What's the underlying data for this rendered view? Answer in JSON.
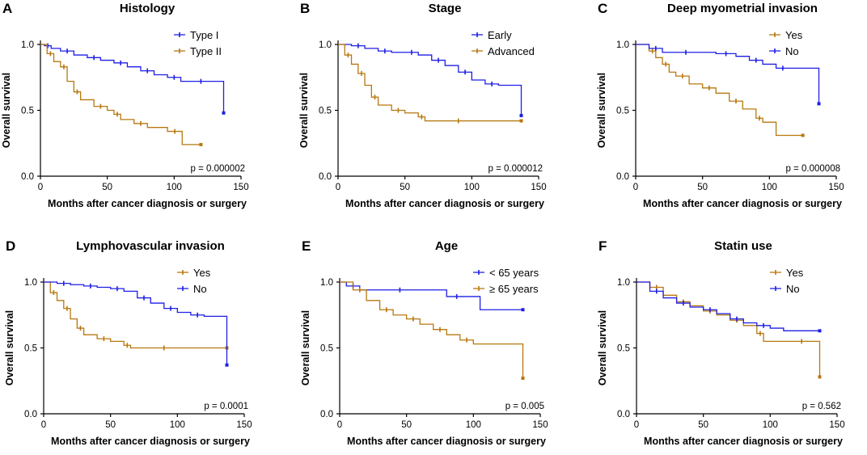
{
  "colors": {
    "blue": "#1f1fe6",
    "brown": "#b7780f",
    "axis": "#000000"
  },
  "chart_data": [
    {
      "type": "line",
      "letter": "A",
      "title": "Histology",
      "xlabel": "Months after cancer diagnosis or surgery",
      "ylabel": "Overall survival",
      "xlim": [
        0,
        150
      ],
      "ylim": [
        0,
        1
      ],
      "xticks": [
        "0",
        "50",
        "100",
        "150"
      ],
      "yticks": [
        "0.0",
        "0.5",
        "1.0"
      ],
      "p_value": "p = 0.000002",
      "legend_position": "top-right",
      "series": [
        {
          "name": "Type I",
          "color": "blue",
          "x": [
            0,
            3,
            8,
            15,
            25,
            35,
            45,
            55,
            65,
            75,
            85,
            95,
            105,
            115,
            125,
            137,
            137
          ],
          "y": [
            1.0,
            0.99,
            0.97,
            0.95,
            0.92,
            0.9,
            0.88,
            0.86,
            0.83,
            0.8,
            0.77,
            0.75,
            0.72,
            0.72,
            0.72,
            0.72,
            0.48
          ]
        },
        {
          "name": "Type II",
          "color": "brown",
          "x": [
            0,
            5,
            10,
            15,
            20,
            25,
            30,
            40,
            50,
            55,
            60,
            70,
            80,
            95,
            106,
            120
          ],
          "y": [
            1.0,
            0.93,
            0.87,
            0.83,
            0.72,
            0.64,
            0.58,
            0.53,
            0.5,
            0.47,
            0.43,
            0.4,
            0.37,
            0.34,
            0.24,
            0.24
          ]
        }
      ]
    },
    {
      "type": "line",
      "letter": "B",
      "title": "Stage",
      "xlabel": "Months after cancer diagnosis or surgery",
      "ylabel": "Overall survival",
      "xlim": [
        0,
        150
      ],
      "ylim": [
        0,
        1
      ],
      "xticks": [
        "0",
        "50",
        "100",
        "150"
      ],
      "yticks": [
        "0.0",
        "0.5",
        "1.0"
      ],
      "p_value": "p = 0.000012",
      "legend_position": "top-right",
      "series": [
        {
          "name": "Early",
          "color": "blue",
          "x": [
            0,
            10,
            20,
            30,
            40,
            50,
            60,
            70,
            80,
            90,
            100,
            110,
            120,
            137,
            137
          ],
          "y": [
            1.0,
            0.99,
            0.97,
            0.95,
            0.94,
            0.94,
            0.92,
            0.88,
            0.84,
            0.79,
            0.73,
            0.7,
            0.69,
            0.69,
            0.46
          ]
        },
        {
          "name": "Advanced",
          "color": "brown",
          "x": [
            0,
            5,
            10,
            15,
            20,
            25,
            30,
            40,
            50,
            60,
            65,
            80,
            100,
            137
          ],
          "y": [
            1.0,
            0.92,
            0.85,
            0.78,
            0.69,
            0.6,
            0.54,
            0.5,
            0.48,
            0.45,
            0.42,
            0.42,
            0.42,
            0.42
          ]
        }
      ]
    },
    {
      "type": "line",
      "letter": "C",
      "title": "Deep myometrial invasion",
      "xlabel": "Months after cancer diagnosis or surgery",
      "ylabel": "Overall survival",
      "xlim": [
        0,
        150
      ],
      "ylim": [
        0,
        1
      ],
      "xticks": [
        "0",
        "50",
        "100",
        "150"
      ],
      "yticks": [
        "0.0",
        "0.5",
        "1.0"
      ],
      "p_value": "p = 0.000008",
      "legend_position": "top-right",
      "series": [
        {
          "name": "Yes",
          "color": "brown",
          "x": [
            0,
            10,
            15,
            20,
            25,
            30,
            40,
            50,
            60,
            70,
            80,
            90,
            95,
            105,
            125
          ],
          "y": [
            1.0,
            0.95,
            0.9,
            0.85,
            0.79,
            0.76,
            0.7,
            0.67,
            0.63,
            0.57,
            0.51,
            0.44,
            0.41,
            0.31,
            0.31
          ]
        },
        {
          "name": "No",
          "color": "blue",
          "x": [
            0,
            10,
            20,
            30,
            45,
            60,
            75,
            85,
            95,
            105,
            115,
            137,
            137
          ],
          "y": [
            1.0,
            0.97,
            0.94,
            0.94,
            0.94,
            0.93,
            0.91,
            0.88,
            0.85,
            0.82,
            0.82,
            0.82,
            0.55
          ]
        }
      ]
    },
    {
      "type": "line",
      "letter": "D",
      "title": "Lymphovascular invasion",
      "xlabel": "Months after cancer diagnosis or surgery",
      "ylabel": "Overall survival",
      "xlim": [
        0,
        150
      ],
      "ylim": [
        0,
        1
      ],
      "xticks": [
        "0",
        "50",
        "100",
        "150"
      ],
      "yticks": [
        "0.0",
        "0.5",
        "1.0"
      ],
      "p_value": "p = 0.0001",
      "legend_position": "top-right",
      "series": [
        {
          "name": "Yes",
          "color": "brown",
          "x": [
            0,
            5,
            10,
            15,
            20,
            25,
            30,
            40,
            50,
            60,
            65,
            80,
            100,
            137
          ],
          "y": [
            1.0,
            0.92,
            0.86,
            0.8,
            0.72,
            0.65,
            0.6,
            0.57,
            0.55,
            0.52,
            0.5,
            0.5,
            0.5,
            0.5
          ]
        },
        {
          "name": "No",
          "color": "blue",
          "x": [
            0,
            10,
            20,
            30,
            40,
            50,
            60,
            70,
            80,
            90,
            100,
            110,
            120,
            137,
            137
          ],
          "y": [
            1.0,
            0.99,
            0.98,
            0.97,
            0.96,
            0.95,
            0.93,
            0.88,
            0.84,
            0.8,
            0.77,
            0.75,
            0.74,
            0.74,
            0.37
          ]
        }
      ]
    },
    {
      "type": "line",
      "letter": "E",
      "title": "Age",
      "xlabel": "Months after cancer diagnosis or surgery",
      "ylabel": "Overall survival",
      "xlim": [
        0,
        150
      ],
      "ylim": [
        0,
        1
      ],
      "xticks": [
        "0",
        "50",
        "100",
        "150"
      ],
      "yticks": [
        "0.0",
        "0.5",
        "1.0"
      ],
      "p_value": "p = 0.005",
      "legend_position": "top-right",
      "series": [
        {
          "name": "< 65 years",
          "color": "blue",
          "x": [
            0,
            5,
            15,
            30,
            60,
            80,
            95,
            105,
            137
          ],
          "y": [
            1.0,
            0.97,
            0.94,
            0.94,
            0.94,
            0.89,
            0.89,
            0.79,
            0.79
          ]
        },
        {
          "name": "≥ 65 years",
          "color": "brown",
          "x": [
            0,
            10,
            20,
            30,
            40,
            50,
            60,
            70,
            80,
            90,
            100,
            137,
            137
          ],
          "y": [
            1.0,
            0.94,
            0.86,
            0.79,
            0.75,
            0.72,
            0.68,
            0.64,
            0.6,
            0.56,
            0.53,
            0.53,
            0.27
          ]
        }
      ]
    },
    {
      "type": "line",
      "letter": "F",
      "title": "Statin use",
      "xlabel": "Months after cancer diagnosis or surgery",
      "ylabel": "Overall survival",
      "xlim": [
        0,
        150
      ],
      "ylim": [
        0,
        1
      ],
      "xticks": [
        "0",
        "50",
        "100",
        "150"
      ],
      "yticks": [
        "0.0",
        "0.5",
        "1.0"
      ],
      "p_value": "p = 0.562",
      "legend_position": "top-right",
      "series": [
        {
          "name": "Yes",
          "color": "brown",
          "x": [
            0,
            10,
            20,
            30,
            40,
            50,
            60,
            70,
            80,
            90,
            95,
            110,
            137,
            137
          ],
          "y": [
            1.0,
            0.96,
            0.9,
            0.85,
            0.82,
            0.78,
            0.75,
            0.71,
            0.67,
            0.61,
            0.55,
            0.55,
            0.55,
            0.28
          ]
        },
        {
          "name": "No",
          "color": "blue",
          "x": [
            0,
            10,
            20,
            30,
            40,
            50,
            60,
            70,
            80,
            90,
            100,
            110,
            137
          ],
          "y": [
            1.0,
            0.93,
            0.88,
            0.84,
            0.81,
            0.79,
            0.76,
            0.72,
            0.69,
            0.67,
            0.65,
            0.63,
            0.63
          ]
        }
      ]
    }
  ]
}
